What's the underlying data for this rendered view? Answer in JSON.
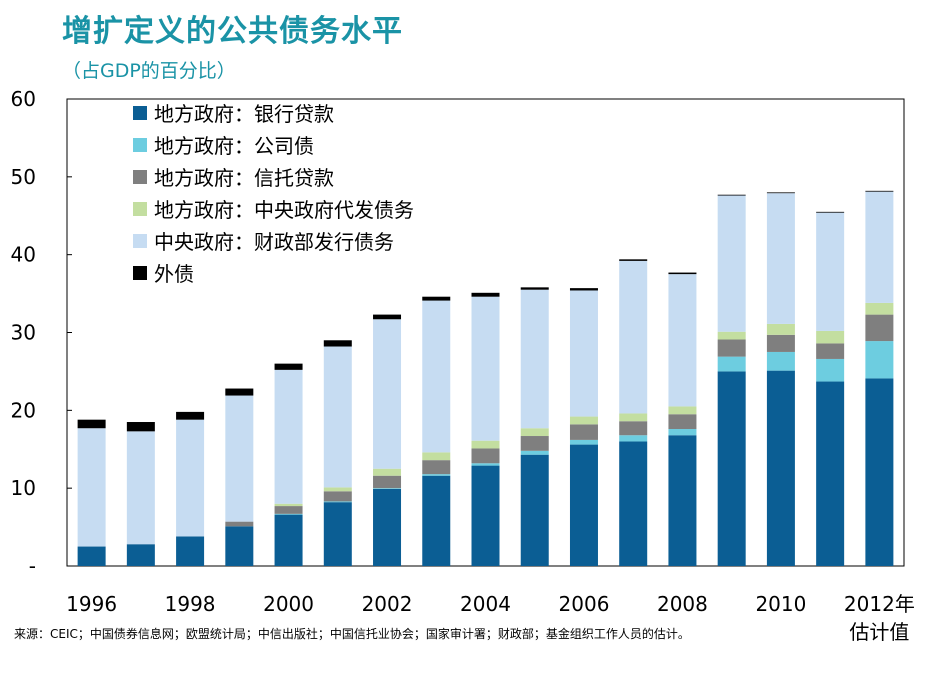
{
  "title": "增扩定义的公共债务水平",
  "subtitle": "（占GDP的百分比）",
  "source": "来源：CEIC；中国债券信息网；欧盟统计局；中信出版社；中国信托业协会；国家审计署；财政部；基金组织工作人员的估计。",
  "chart_data": {
    "type": "bar",
    "stacked": true,
    "title": "增扩定义的公共债务水平",
    "subtitle": "（占GDP的百分比）",
    "ylim": [
      0,
      60
    ],
    "yticks": [
      "-",
      "10",
      "20",
      "30",
      "40",
      "50",
      "60"
    ],
    "categories": [
      "1996",
      "1997",
      "1998",
      "1999",
      "2000",
      "2001",
      "2002",
      "2003",
      "2004",
      "2005",
      "2006",
      "2007",
      "2008",
      "2009",
      "2010",
      "2011",
      "2012"
    ],
    "xtick_labels": [
      "1996",
      "",
      "1998",
      "",
      "2000",
      "",
      "2002",
      "",
      "2004",
      "",
      "2006",
      "",
      "2008",
      "",
      "2010",
      "",
      "2012年"
    ],
    "xtick_extra": "估计值",
    "legend_position": "top-left",
    "series": [
      {
        "name": "地方政府：银行贷款",
        "color": "#0b5e94",
        "values": [
          2.5,
          2.8,
          3.8,
          5.1,
          6.6,
          8.2,
          9.9,
          11.6,
          12.9,
          14.3,
          15.6,
          16.0,
          16.8,
          25.0,
          25.1,
          23.7,
          24.1
        ]
      },
      {
        "name": "地方政府：公司债",
        "color": "#6dcde0",
        "values": [
          0.0,
          0.0,
          0.0,
          0.0,
          0.1,
          0.1,
          0.1,
          0.2,
          0.3,
          0.5,
          0.6,
          0.8,
          0.8,
          1.9,
          2.4,
          2.9,
          4.8
        ]
      },
      {
        "name": "地方政府：信托贷款",
        "color": "#7f7f7f",
        "values": [
          0.0,
          0.0,
          0.0,
          0.6,
          1.0,
          1.3,
          1.6,
          1.8,
          1.9,
          1.9,
          2.0,
          1.8,
          1.9,
          2.2,
          2.2,
          2.0,
          3.4
        ]
      },
      {
        "name": "地方政府：中央政府代发债务",
        "color": "#c3dea0",
        "values": [
          0.0,
          0.0,
          0.0,
          0.0,
          0.3,
          0.5,
          0.9,
          1.0,
          1.0,
          1.0,
          1.0,
          1.0,
          1.0,
          1.0,
          1.4,
          1.6,
          1.5
        ]
      },
      {
        "name": "中央政府：财政部发行债务",
        "color": "#c6dcf2",
        "values": [
          15.2,
          14.5,
          15.0,
          16.2,
          17.2,
          18.1,
          19.2,
          19.5,
          18.5,
          17.8,
          16.2,
          19.6,
          17.0,
          17.5,
          16.8,
          15.2,
          14.3
        ]
      },
      {
        "name": "外债",
        "color": "#000000",
        "values": [
          1.1,
          1.2,
          1.0,
          0.9,
          0.8,
          0.8,
          0.6,
          0.5,
          0.5,
          0.3,
          0.3,
          0.2,
          0.2,
          0.1,
          0.1,
          0.1,
          0.1
        ]
      }
    ]
  }
}
